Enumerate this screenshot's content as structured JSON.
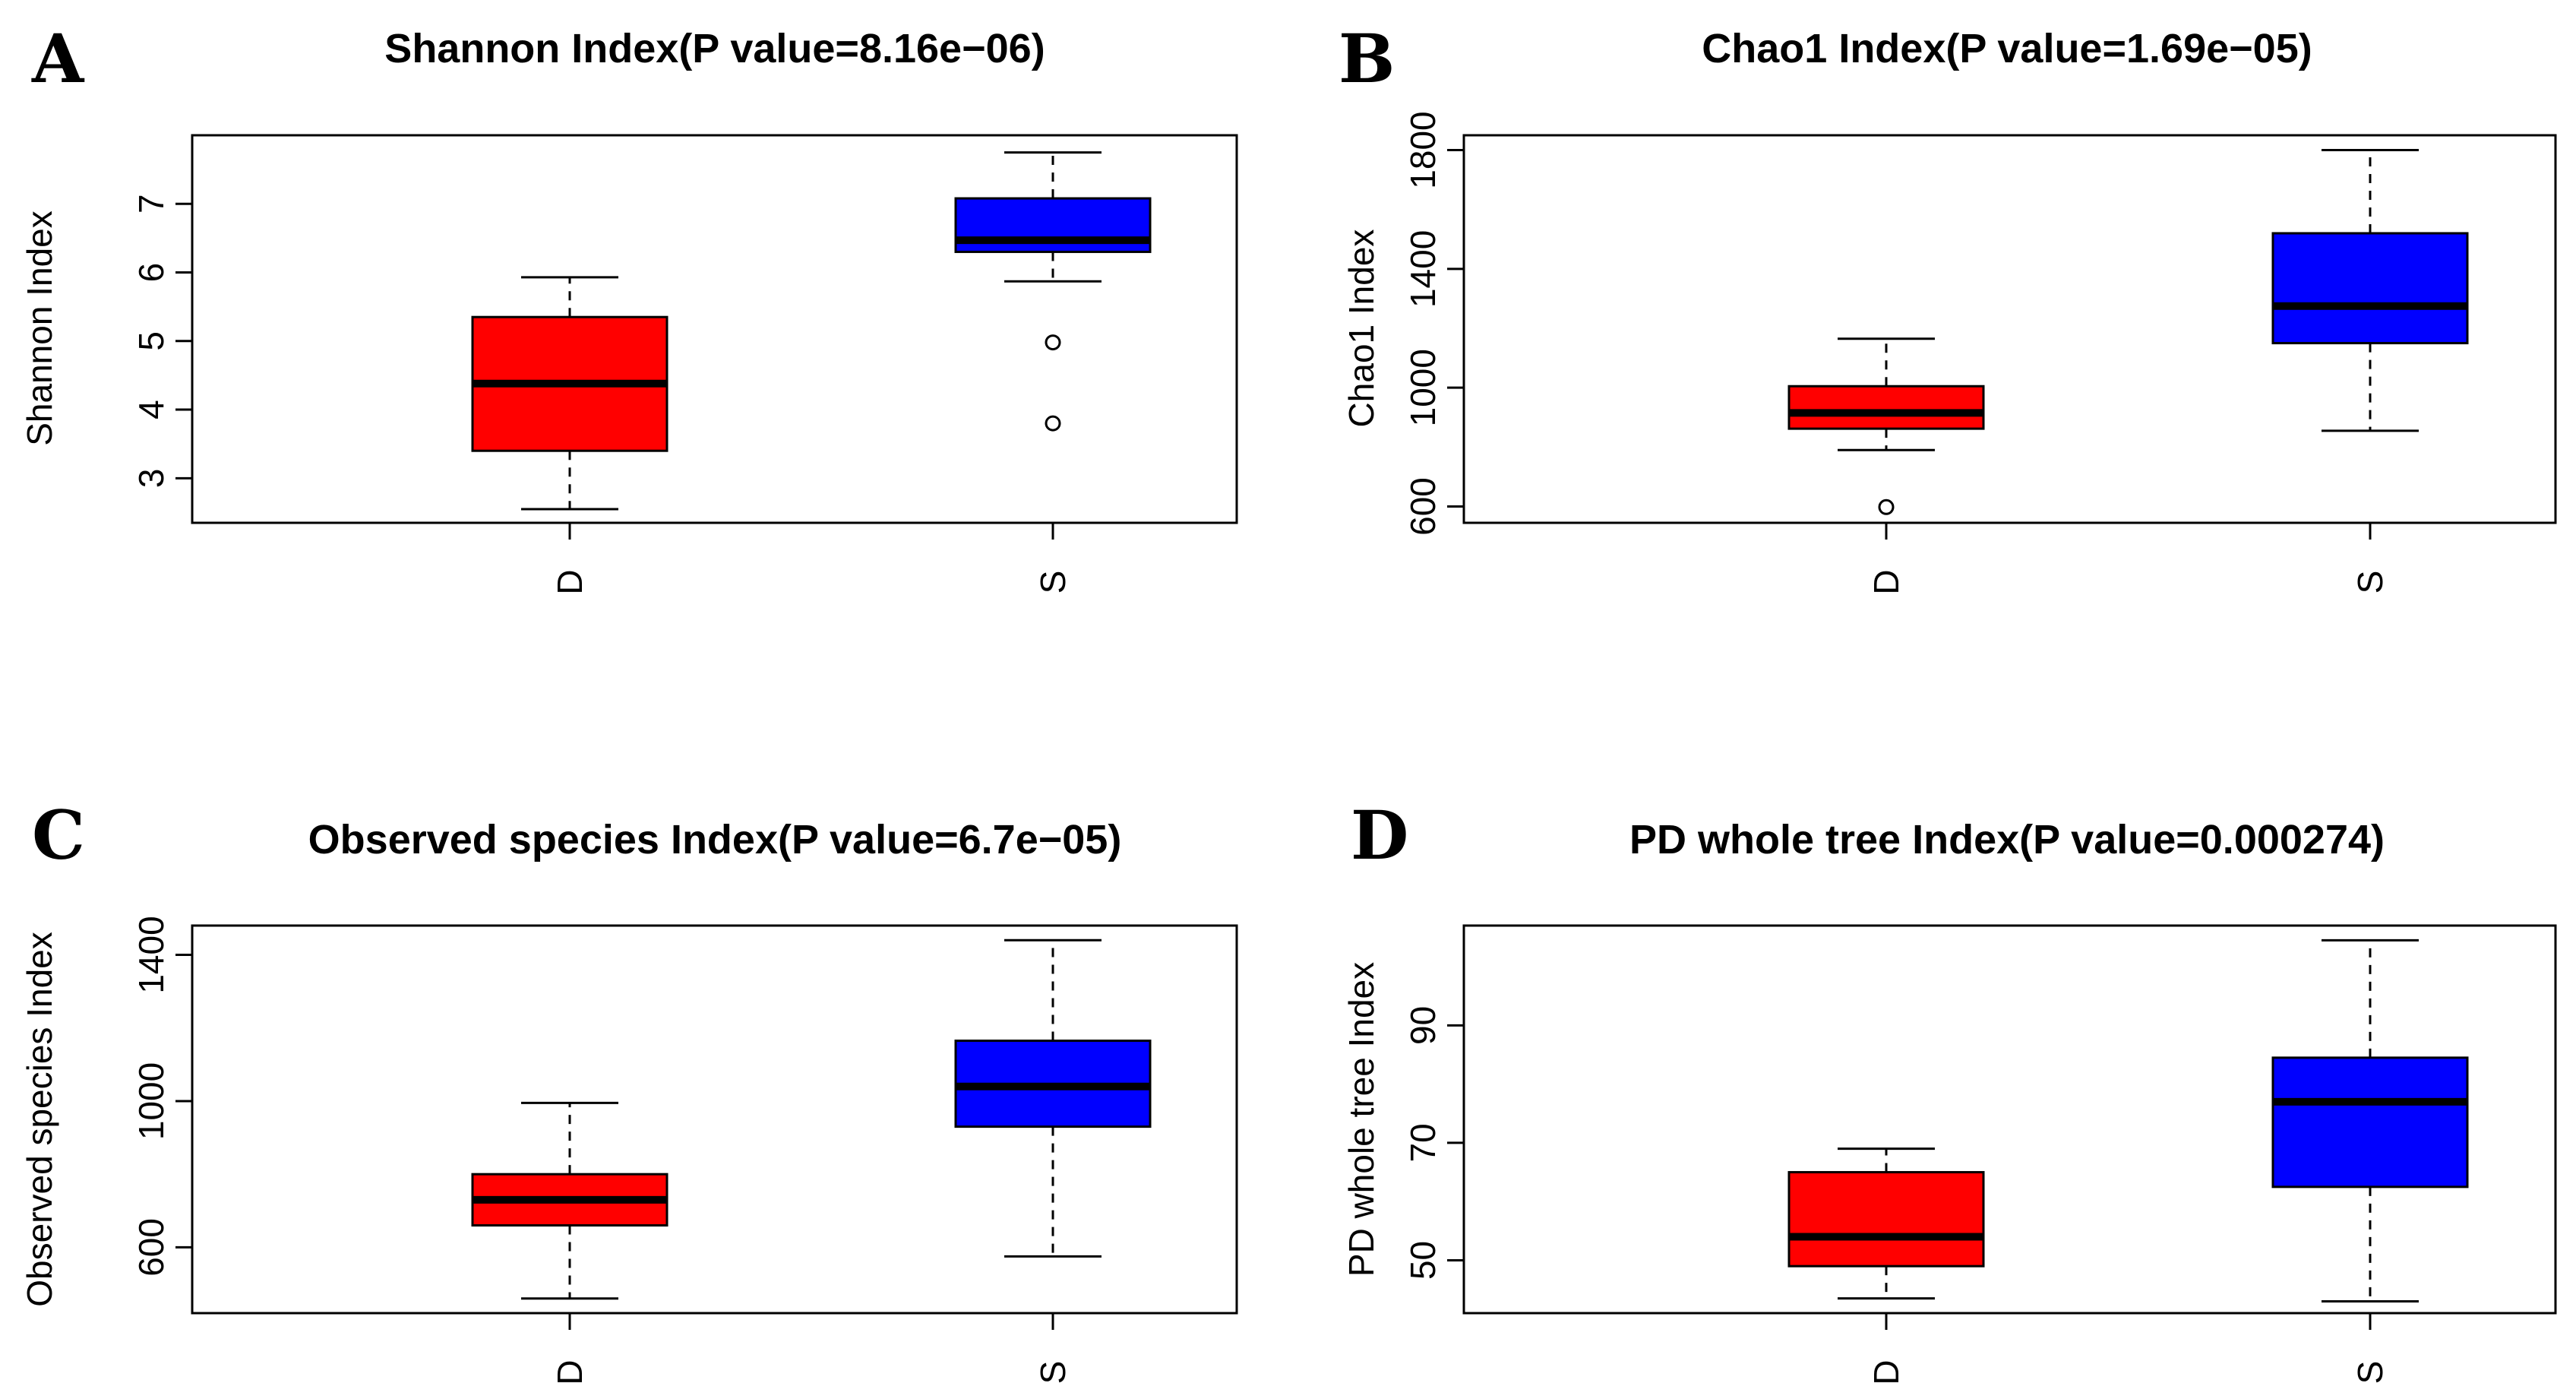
{
  "chart_data": [
    {
      "type": "boxplot",
      "panel": "A",
      "title": "Shannon Index(P value=8.16e−06)",
      "ylabel": "Shannon Index",
      "xlabel": "",
      "ylim": [
        2.35,
        8.0
      ],
      "yticks": [
        3,
        4,
        5,
        6,
        7
      ],
      "yticklabels": [
        "3",
        "4",
        "5",
        "6",
        "7"
      ],
      "categories": [
        "D",
        "S"
      ],
      "colors": [
        "#ff0000",
        "#0000ff"
      ],
      "boxes": [
        {
          "category": "D",
          "whisker_low": 2.55,
          "q1": 3.4,
          "median": 4.38,
          "q3": 5.35,
          "whisker_high": 5.93,
          "outliers": []
        },
        {
          "category": "S",
          "whisker_low": 5.87,
          "q1": 6.3,
          "median": 6.47,
          "q3": 7.08,
          "whisker_high": 7.75,
          "outliers": [
            4.98,
            3.8
          ]
        }
      ]
    },
    {
      "type": "boxplot",
      "panel": "B",
      "title": "Chao1 Index(P value=1.69e−05)",
      "ylabel": "Chao1 Index",
      "xlabel": "",
      "ylim": [
        545,
        1850
      ],
      "yticks": [
        600,
        1000,
        1400,
        1800
      ],
      "yticklabels": [
        "600",
        "1000",
        "1400",
        "1800"
      ],
      "categories": [
        "D",
        "S"
      ],
      "colors": [
        "#ff0000",
        "#0000ff"
      ],
      "boxes": [
        {
          "category": "D",
          "whisker_low": 790,
          "q1": 862,
          "median": 915,
          "q3": 1005,
          "whisker_high": 1165,
          "outliers": [
            598
          ]
        },
        {
          "category": "S",
          "whisker_low": 855,
          "q1": 1150,
          "median": 1275,
          "q3": 1520,
          "whisker_high": 1800,
          "outliers": []
        }
      ]
    },
    {
      "type": "boxplot",
      "panel": "C",
      "title": "Observed species Index(P value=6.7e−05)",
      "ylabel": "Observed species Index",
      "xlabel": "",
      "ylim": [
        420,
        1480
      ],
      "yticks": [
        600,
        1000,
        1400
      ],
      "yticklabels": [
        "600",
        "1000",
        "1400"
      ],
      "categories": [
        "D",
        "S"
      ],
      "colors": [
        "#ff0000",
        "#0000ff"
      ],
      "boxes": [
        {
          "category": "D",
          "whisker_low": 460,
          "q1": 660,
          "median": 730,
          "q3": 800,
          "whisker_high": 995,
          "outliers": []
        },
        {
          "category": "S",
          "whisker_low": 575,
          "q1": 930,
          "median": 1040,
          "q3": 1165,
          "whisker_high": 1440,
          "outliers": []
        }
      ]
    },
    {
      "type": "boxplot",
      "panel": "D",
      "title": "PD whole tree Index(P value=0.000274)",
      "ylabel": "PD whole tree Index",
      "xlabel": "",
      "ylim": [
        41,
        107
      ],
      "yticks": [
        50,
        70,
        90
      ],
      "yticklabels": [
        "50",
        "70",
        "90"
      ],
      "categories": [
        "D",
        "S"
      ],
      "colors": [
        "#ff0000",
        "#0000ff"
      ],
      "boxes": [
        {
          "category": "D",
          "whisker_low": 43.5,
          "q1": 49,
          "median": 54,
          "q3": 65,
          "whisker_high": 69,
          "outliers": []
        },
        {
          "category": "S",
          "whisker_low": 43,
          "q1": 62.5,
          "median": 77,
          "q3": 84.5,
          "whisker_high": 104.5,
          "outliers": []
        }
      ]
    }
  ]
}
